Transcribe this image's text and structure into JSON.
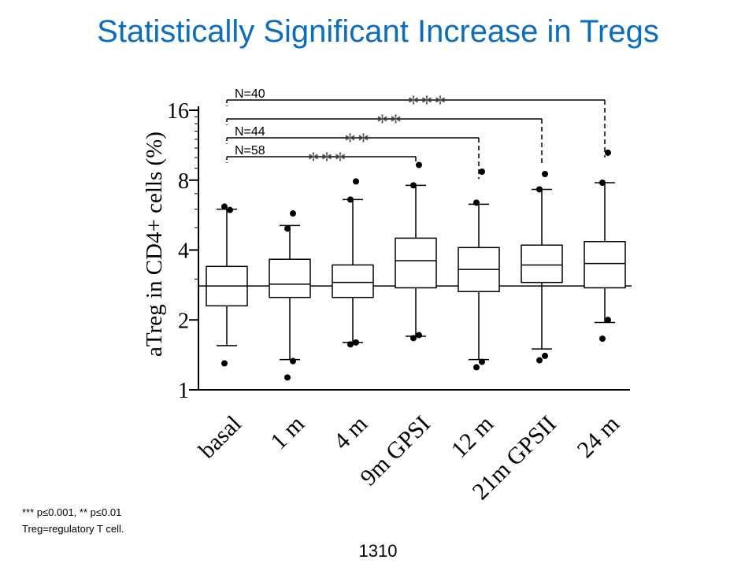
{
  "slide": {
    "title": "Statistically Significant Increase in Tregs",
    "footnote_line1": "*** p≤0.001, ** p≤0.01",
    "footnote_line2": "Treg=regulatory T cell.",
    "page_number": "1310"
  },
  "chart_data": {
    "type": "box",
    "title": "",
    "xlabel": "",
    "ylabel": "aTreg in CD4+ cells (%)",
    "yscale": "log2",
    "ylim": [
      1,
      16
    ],
    "yticks": [
      1,
      2,
      4,
      8,
      16
    ],
    "ytick_labels": [
      "1",
      "2",
      "4",
      "8",
      "16"
    ],
    "reference_line": 2.8,
    "categories": [
      "basal",
      "1 m",
      "4 m",
      "9m GPSI",
      "12 m",
      "21m GPSII",
      "24 m"
    ],
    "boxes": [
      {
        "q1": 2.3,
        "median": 2.8,
        "q3": 3.4,
        "whisker_low": 1.55,
        "whisker_high": 6.0
      },
      {
        "q1": 2.5,
        "median": 2.85,
        "q3": 3.65,
        "whisker_low": 1.35,
        "whisker_high": 5.1
      },
      {
        "q1": 2.5,
        "median": 2.9,
        "q3": 3.45,
        "whisker_low": 1.6,
        "whisker_high": 6.6
      },
      {
        "q1": 2.75,
        "median": 3.6,
        "q3": 4.5,
        "whisker_low": 1.7,
        "whisker_high": 7.6
      },
      {
        "q1": 2.65,
        "median": 3.3,
        "q3": 4.1,
        "whisker_low": 1.35,
        "whisker_high": 6.3
      },
      {
        "q1": 2.9,
        "median": 3.45,
        "q3": 4.2,
        "whisker_low": 1.5,
        "whisker_high": 7.3
      },
      {
        "q1": 2.75,
        "median": 3.5,
        "q3": 4.35,
        "whisker_low": 1.95,
        "whisker_high": 7.8
      }
    ],
    "outliers": [
      [
        1.3,
        5.95,
        6.15
      ],
      [
        1.13,
        1.33,
        4.95,
        5.75
      ],
      [
        1.57,
        1.6,
        6.6,
        7.9
      ],
      [
        1.67,
        1.72,
        7.6,
        9.3
      ],
      [
        1.25,
        1.32,
        6.4,
        8.7
      ],
      [
        1.34,
        1.4,
        7.3,
        8.5
      ],
      [
        1.66,
        2.0,
        7.8,
        10.5
      ]
    ],
    "significance": [
      {
        "from": "basal",
        "to": "9m GPSI",
        "stars": "***",
        "n_label": "N=58"
      },
      {
        "from": "basal",
        "to": "12 m",
        "stars": "**",
        "n_label": "N=44"
      },
      {
        "from": "basal",
        "to": "21m GPSII",
        "stars": "**",
        "n_label": ""
      },
      {
        "from": "basal",
        "to": "24 m",
        "stars": "***",
        "n_label": "N=40"
      }
    ]
  }
}
